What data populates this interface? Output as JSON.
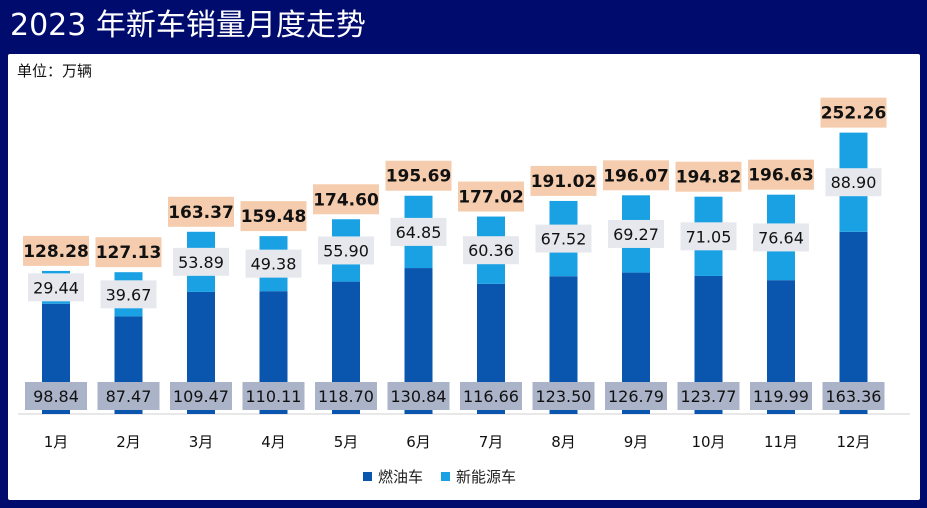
{
  "title": "2023 年新车销量月度走势",
  "unit_label": "单位：万辆",
  "colors": {
    "background": "#000b6e",
    "fuel": "#0a55ad",
    "nev": "#1aa1e3",
    "total_bg": "#f5cdae",
    "nev_label_bg": "#e6e8ee",
    "fuel_label_bg": "#aab3c8"
  },
  "chart_data": {
    "type": "bar",
    "stacked": true,
    "categories": [
      "1月",
      "2月",
      "3月",
      "4月",
      "5月",
      "6月",
      "7月",
      "8月",
      "9月",
      "10月",
      "11月",
      "12月"
    ],
    "series": [
      {
        "name": "燃油车",
        "values": [
          98.84,
          87.47,
          109.47,
          110.11,
          118.7,
          130.84,
          116.66,
          123.5,
          126.79,
          123.77,
          119.99,
          163.36
        ]
      },
      {
        "name": "新能源车",
        "values": [
          29.44,
          39.67,
          53.89,
          49.38,
          55.9,
          64.85,
          60.36,
          67.52,
          69.27,
          71.05,
          76.64,
          88.9
        ]
      }
    ],
    "totals": [
      128.28,
      127.13,
      163.37,
      159.48,
      174.6,
      195.69,
      177.02,
      191.02,
      196.07,
      194.82,
      196.63,
      252.26
    ],
    "ylim": [
      0,
      260
    ],
    "legend_position": "bottom"
  }
}
